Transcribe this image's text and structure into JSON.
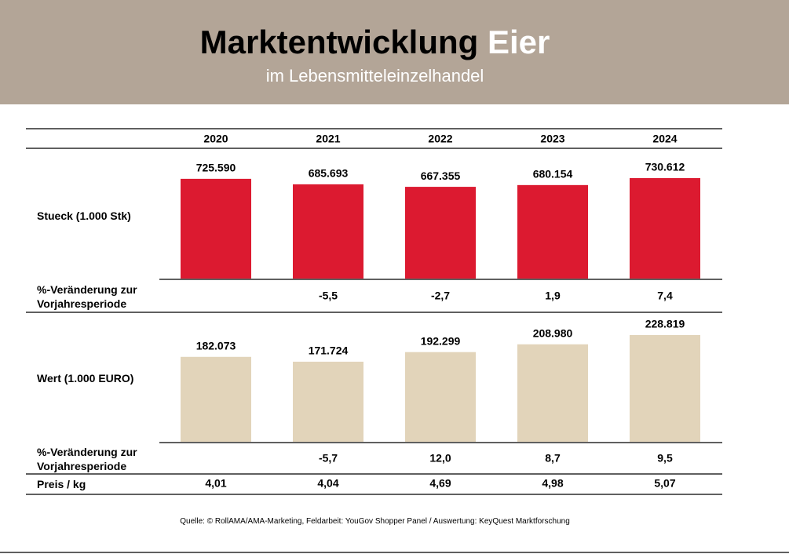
{
  "header": {
    "title": "Marktentwicklung",
    "title_highlight": "Eier",
    "subtitle": "im Lebensmitteleinzelhandel"
  },
  "chart_data": {
    "type": "bar",
    "categories": [
      "2020",
      "2021",
      "2022",
      "2023",
      "2024"
    ],
    "series": [
      {
        "name": "Stueck (1.000 Stk)",
        "color": "#dc1a30",
        "values": [
          725590,
          685693,
          667355,
          680154,
          730612
        ],
        "value_labels": [
          "725.590",
          "685.693",
          "667.355",
          "680.154",
          "730.612"
        ]
      },
      {
        "name": "Wert (1.000 EURO)",
        "color": "#e2d4ba",
        "values": [
          182073,
          171724,
          192299,
          208980,
          228819
        ],
        "value_labels": [
          "182.073",
          "171.724",
          "192.299",
          "208.980",
          "228.819"
        ]
      }
    ],
    "changes": [
      {
        "name": "%-Veränderung zur Vorjahresperiode",
        "values": [
          null,
          -5.5,
          -2.7,
          1.9,
          7.4
        ],
        "value_labels": [
          null,
          "-5,5",
          "-2,7",
          "1,9",
          "7,4"
        ]
      },
      {
        "name": "%-Veränderung zur Vorjahresperiode",
        "values": [
          null,
          -5.7,
          12.0,
          8.7,
          9.5
        ],
        "value_labels": [
          null,
          "-5,7",
          "12,0",
          "8,7",
          "9,5"
        ]
      }
    ],
    "price": {
      "name": "Preis / kg",
      "values": [
        4.01,
        4.04,
        4.69,
        4.98,
        5.07
      ],
      "value_labels": [
        "4,01",
        "4,04",
        "4,69",
        "4,98",
        "5,07"
      ]
    }
  },
  "source": "Quelle: © RollAMA/AMA-Marketing, Feldarbeit: YouGov Shopper Panel / Auswertung: KeyQuest Marktforschung"
}
